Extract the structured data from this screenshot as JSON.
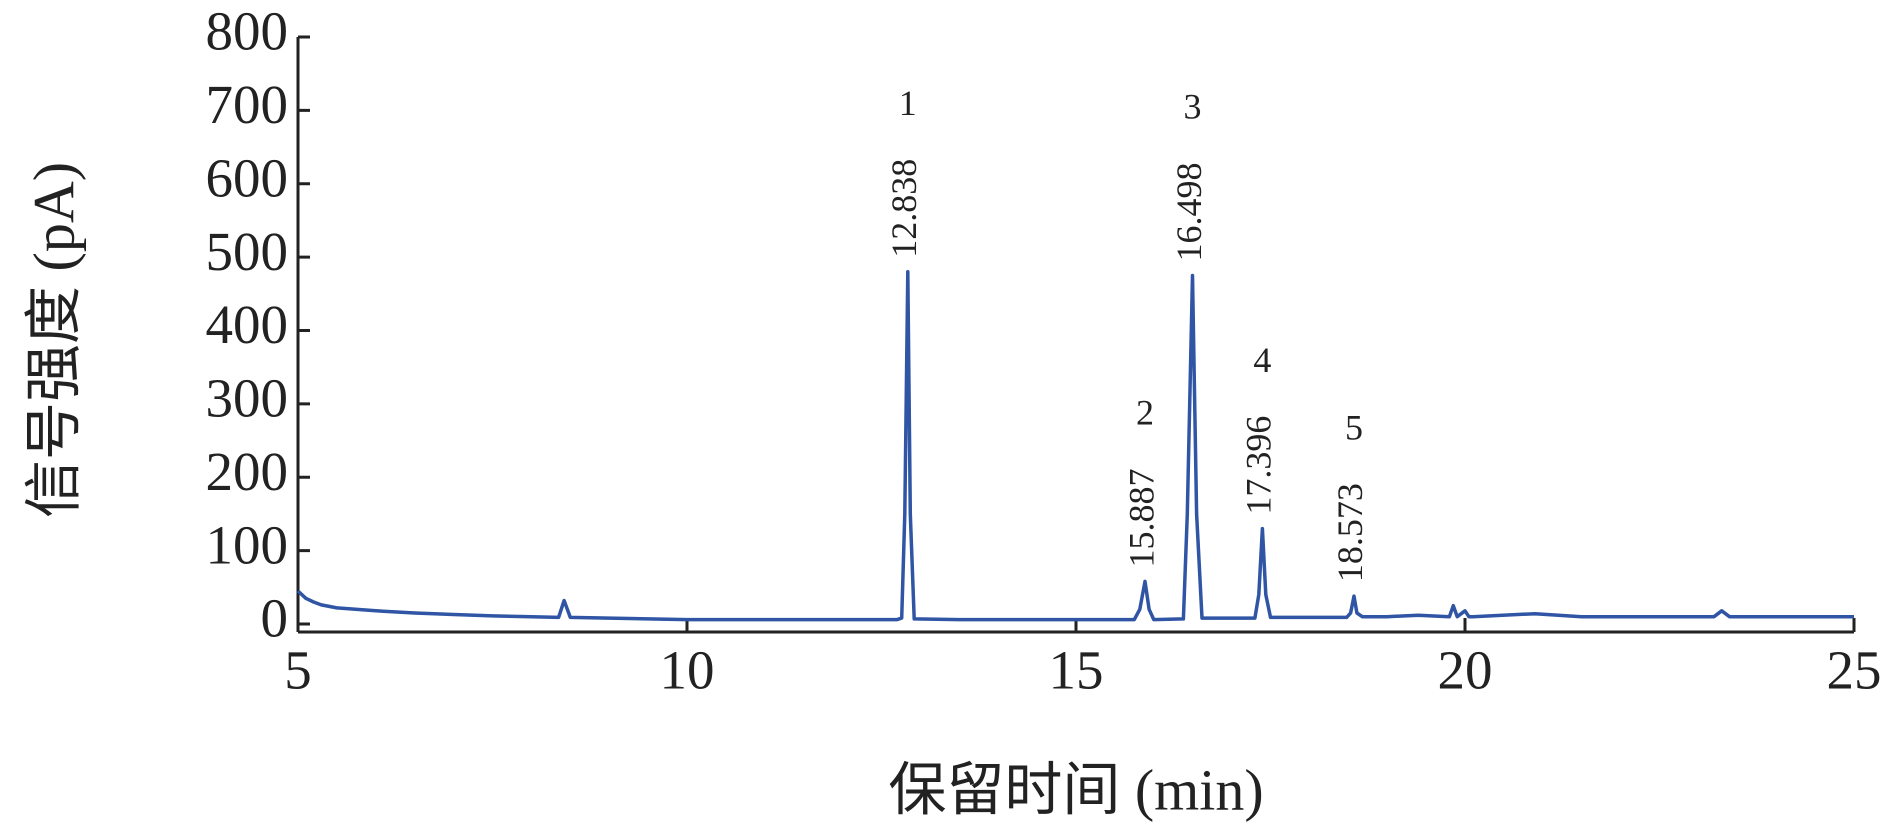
{
  "chart_data": {
    "type": "line",
    "xlabel": "保留时间 (min)",
    "ylabel": "信号强度 (pA)",
    "xlim": [
      5,
      25
    ],
    "xticks": [
      5,
      10,
      15,
      20,
      25
    ],
    "ylim": [
      0,
      800
    ],
    "yticks": [
      0,
      100,
      200,
      300,
      400,
      500,
      600,
      700,
      800
    ],
    "series": [
      {
        "color": "#2f55a4",
        "x": [
          5,
          5.1,
          5.2,
          5.3,
          5.5,
          6,
          6.5,
          7,
          7.5,
          8,
          8.35,
          8.42,
          8.5,
          9,
          10,
          11,
          12,
          12.7,
          12.76,
          12.8,
          12.838,
          12.87,
          12.92,
          13.5,
          14,
          15,
          15.75,
          15.82,
          15.887,
          15.94,
          16.0,
          16.38,
          16.43,
          16.498,
          16.55,
          16.62,
          17.0,
          17.3,
          17.35,
          17.396,
          17.44,
          17.5,
          18.0,
          18.48,
          18.53,
          18.573,
          18.61,
          18.68,
          19.0,
          19.4,
          19.8,
          19.85,
          19.9,
          20.0,
          20.05,
          20.1,
          20.9,
          21.5,
          22,
          23.2,
          23.3,
          23.4,
          24,
          25
        ],
        "values": [
          45,
          35,
          30,
          26,
          22,
          18,
          15,
          13,
          11,
          10,
          9,
          32,
          9,
          8,
          6,
          6,
          6,
          6,
          8,
          150,
          480,
          150,
          7,
          6,
          6,
          6,
          6,
          20,
          58,
          20,
          6,
          7,
          150,
          475,
          150,
          8,
          8,
          8,
          40,
          130,
          40,
          9,
          9,
          9,
          15,
          38,
          15,
          10,
          10,
          12,
          10,
          25,
          10,
          18,
          10,
          10,
          14,
          10,
          10,
          10,
          18,
          10,
          10,
          10
        ]
      }
    ],
    "peaks": [
      {
        "label": "1",
        "x": 12.838,
        "y": 480
      },
      {
        "label": "2",
        "x": 15.887,
        "y": 58
      },
      {
        "label": "3",
        "x": 16.498,
        "y": 475
      },
      {
        "label": "4",
        "x": 17.396,
        "y": 130
      },
      {
        "label": "5",
        "x": 18.573,
        "y": 38
      }
    ]
  }
}
